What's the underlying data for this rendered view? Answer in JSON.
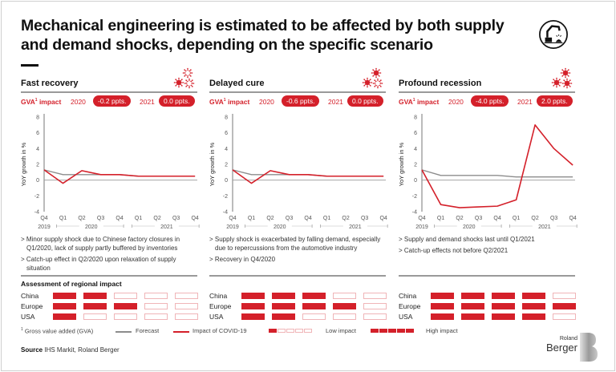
{
  "title": "Mechanical engineering is estimated to be affected by both supply and demand shocks, depending on the specific scenario",
  "header_icon": "robot-arm-welding-icon",
  "gva_label": "GVA",
  "gva_sup": "1",
  "gva_suffix": " impact",
  "y_axis_label": "YoY growth in %",
  "assessment_title": "Assessment of regional impact",
  "regions": [
    "China",
    "Europe",
    "USA"
  ],
  "panels": [
    {
      "title": "Fast recovery",
      "severity_icons": {
        "filled": 1,
        "outlined": 2
      },
      "gva_2020_year": "2020",
      "gva_2020_value": "-0.2 ppts.",
      "gva_2021_year": "2021",
      "gva_2021_value": "0.0 ppts.",
      "bullets": [
        "> Minor supply shock due to Chinese factory closures in Q1/2020, lack of supply partly buffered by inventories",
        "> Catch-up effect in Q2/2020 upon relaxation of supply situation"
      ],
      "regional_impact": {
        "China": 2,
        "Europe": 3,
        "USA": 1
      }
    },
    {
      "title": "Delayed cure",
      "severity_icons": {
        "filled": 2,
        "outlined": 1
      },
      "gva_2020_year": "2020",
      "gva_2020_value": "-0.6 ppts.",
      "gva_2021_year": "2021",
      "gva_2021_value": "0.0 ppts.",
      "bullets": [
        "> Supply shock is exacerbated by falling demand, especially due to repercussions from the automotive industry",
        "> Recovery in Q4/2020"
      ],
      "regional_impact": {
        "China": 3,
        "Europe": 4,
        "USA": 2
      }
    },
    {
      "title": "Profound recession",
      "severity_icons": {
        "filled": 3,
        "outlined": 0
      },
      "gva_2020_year": "2020",
      "gva_2020_value": "-4.0 ppts.",
      "gva_2021_year": "2021",
      "gva_2021_value": "2.0 ppts.",
      "bullets": [
        "> Supply and demand shocks last until Q1/2021",
        "> Catch-up effects not before Q2/2021"
      ],
      "regional_impact": {
        "China": 4,
        "Europe": 5,
        "USA": 4
      }
    }
  ],
  "chart_data": [
    {
      "type": "line",
      "title": "Fast recovery",
      "ylabel": "YoY growth in %",
      "ylim": [
        -4,
        8
      ],
      "yticks": [
        -4,
        -2,
        0,
        2,
        4,
        6,
        8
      ],
      "categories": [
        "Q4",
        "Q1",
        "Q2",
        "Q3",
        "Q4",
        "Q1",
        "Q2",
        "Q3",
        "Q4"
      ],
      "year_groups": [
        {
          "label": "2019",
          "span": [
            0,
            0
          ]
        },
        {
          "label": "2020",
          "span": [
            1,
            4
          ]
        },
        {
          "label": "2021",
          "span": [
            5,
            8
          ]
        }
      ],
      "series": [
        {
          "name": "Forecast",
          "color": "#8c8c8c",
          "values": [
            1.3,
            0.7,
            0.7,
            0.7,
            0.7,
            0.5,
            0.5,
            0.5,
            0.5
          ]
        },
        {
          "name": "Impact of COVID-19",
          "color": "#d4202a",
          "values": [
            1.3,
            -0.4,
            1.2,
            0.7,
            0.7,
            0.5,
            0.5,
            0.5,
            0.5
          ]
        }
      ]
    },
    {
      "type": "line",
      "title": "Delayed cure",
      "ylabel": "YoY growth in %",
      "ylim": [
        -4,
        8
      ],
      "yticks": [
        -4,
        -2,
        0,
        2,
        4,
        6,
        8
      ],
      "categories": [
        "Q4",
        "Q1",
        "Q2",
        "Q3",
        "Q4",
        "Q1",
        "Q2",
        "Q3",
        "Q4"
      ],
      "year_groups": [
        {
          "label": "2019",
          "span": [
            0,
            0
          ]
        },
        {
          "label": "2020",
          "span": [
            1,
            4
          ]
        },
        {
          "label": "2021",
          "span": [
            5,
            8
          ]
        }
      ],
      "series": [
        {
          "name": "Forecast",
          "color": "#8c8c8c",
          "values": [
            1.3,
            0.7,
            0.7,
            0.7,
            0.7,
            0.5,
            0.5,
            0.5,
            0.5
          ]
        },
        {
          "name": "Impact of COVID-19",
          "color": "#d4202a",
          "values": [
            1.3,
            -0.4,
            1.2,
            0.7,
            0.7,
            0.5,
            0.5,
            0.5,
            0.5
          ]
        }
      ]
    },
    {
      "type": "line",
      "title": "Profound recession",
      "ylabel": "YoY growth in %",
      "ylim": [
        -4,
        8
      ],
      "yticks": [
        -4,
        -2,
        0,
        2,
        4,
        6,
        8
      ],
      "categories": [
        "Q4",
        "Q1",
        "Q2",
        "Q3",
        "Q4",
        "Q1",
        "Q2",
        "Q3",
        "Q4"
      ],
      "year_groups": [
        {
          "label": "2019",
          "span": [
            0,
            0
          ]
        },
        {
          "label": "2020",
          "span": [
            1,
            4
          ]
        },
        {
          "label": "2021",
          "span": [
            5,
            8
          ]
        }
      ],
      "series": [
        {
          "name": "Forecast",
          "color": "#8c8c8c",
          "values": [
            1.3,
            0.6,
            0.6,
            0.6,
            0.6,
            0.4,
            0.4,
            0.4,
            0.4
          ]
        },
        {
          "name": "Impact of COVID-19",
          "color": "#d4202a",
          "values": [
            1.3,
            -3.1,
            -3.5,
            -3.4,
            -3.3,
            -2.5,
            7.0,
            4.0,
            1.9
          ]
        }
      ]
    }
  ],
  "legend": {
    "footnote_mark": "1",
    "footnote": "Gross value added (GVA)",
    "forecast": "Forecast",
    "covid": "Impact of COVID-19",
    "low": "Low impact",
    "high": "High impact"
  },
  "source_label": "Source",
  "source_text": " IHS Markit, Roland Berger",
  "logo": {
    "line1": "Roland",
    "line2": "Berger"
  },
  "colors": {
    "accent": "#d4202a",
    "forecast": "#8c8c8c",
    "cell_empty_border": "#f0b5b8"
  }
}
